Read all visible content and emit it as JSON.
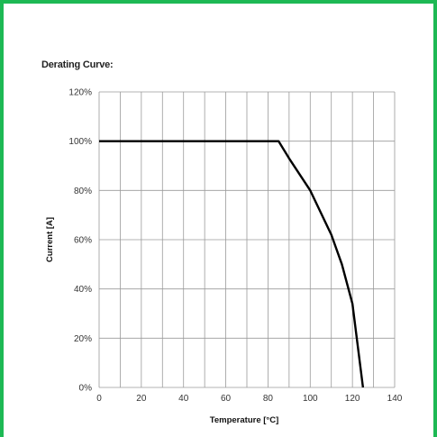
{
  "chart_data": {
    "type": "line",
    "title": "Derating Curve:",
    "xlabel": "Temperature [°C]",
    "ylabel": "Current [A]",
    "xlim": [
      0,
      140
    ],
    "ylim": [
      0,
      120
    ],
    "x_ticks": [
      0,
      20,
      40,
      60,
      80,
      100,
      120,
      140
    ],
    "x_tick_labels": [
      "0",
      "20",
      "40",
      "60",
      "80",
      "100",
      "120",
      "140"
    ],
    "y_ticks": [
      0,
      20,
      40,
      60,
      80,
      100,
      120
    ],
    "y_tick_labels": [
      "0%",
      "20%",
      "40%",
      "60%",
      "80%",
      "100%",
      "120%"
    ],
    "grid": true,
    "series": [
      {
        "x": [
          0,
          85,
          90,
          100,
          110,
          115,
          120,
          125
        ],
        "y": [
          100,
          100,
          93,
          80,
          62,
          50,
          34,
          0
        ]
      }
    ]
  },
  "colors": {
    "frame": "#1db954",
    "grid": "#9a9a9a",
    "line": "#000000"
  }
}
